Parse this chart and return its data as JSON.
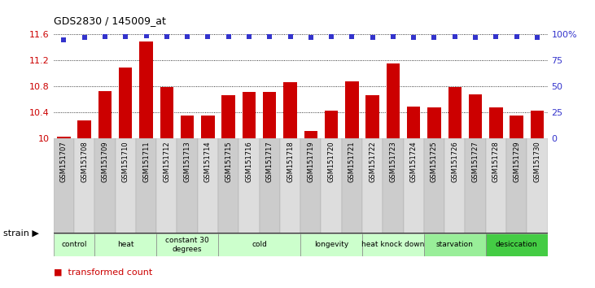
{
  "title": "GDS2830 / 145009_at",
  "categories": [
    "GSM151707",
    "GSM151708",
    "GSM151709",
    "GSM151710",
    "GSM151711",
    "GSM151712",
    "GSM151713",
    "GSM151714",
    "GSM151715",
    "GSM151716",
    "GSM151717",
    "GSM151718",
    "GSM151719",
    "GSM151720",
    "GSM151721",
    "GSM151722",
    "GSM151723",
    "GSM151724",
    "GSM151725",
    "GSM151726",
    "GSM151727",
    "GSM151728",
    "GSM151729",
    "GSM151730"
  ],
  "bar_values": [
    10.02,
    10.28,
    10.73,
    11.09,
    11.49,
    10.79,
    10.35,
    10.35,
    10.67,
    10.72,
    10.72,
    10.87,
    10.11,
    10.42,
    10.88,
    10.67,
    11.15,
    10.49,
    10.48,
    10.79,
    10.68,
    10.47,
    10.35,
    10.43
  ],
  "percentile_values": [
    95,
    97,
    98,
    98,
    99,
    98,
    98,
    98,
    98,
    98,
    98,
    98,
    97,
    98,
    98,
    97,
    98,
    97,
    97,
    98,
    97,
    98,
    98,
    97
  ],
  "bar_color": "#cc0000",
  "percentile_color": "#3333cc",
  "ylim_left": [
    10.0,
    11.6
  ],
  "ylim_right": [
    0,
    100
  ],
  "yticks_left": [
    10.0,
    10.4,
    10.8,
    11.2,
    11.6
  ],
  "ytick_labels_left": [
    "10",
    "10.4",
    "10.8",
    "11.2",
    "11.6"
  ],
  "yticks_right": [
    0,
    25,
    50,
    75,
    100
  ],
  "ytick_labels_right": [
    "0",
    "25",
    "50",
    "75",
    "100%"
  ],
  "groups": [
    {
      "label": "control",
      "start": 0,
      "end": 1,
      "color": "#ccffcc"
    },
    {
      "label": "heat",
      "start": 2,
      "end": 4,
      "color": "#ccffcc"
    },
    {
      "label": "constant 30\ndegrees",
      "start": 5,
      "end": 7,
      "color": "#ccffcc"
    },
    {
      "label": "cold",
      "start": 8,
      "end": 11,
      "color": "#ccffcc"
    },
    {
      "label": "longevity",
      "start": 12,
      "end": 14,
      "color": "#ccffcc"
    },
    {
      "label": "heat knock down",
      "start": 15,
      "end": 17,
      "color": "#ccffcc"
    },
    {
      "label": "starvation",
      "start": 18,
      "end": 20,
      "color": "#99ee99"
    },
    {
      "label": "desiccation",
      "start": 21,
      "end": 23,
      "color": "#44cc44"
    }
  ],
  "background_color": "#ffffff",
  "tick_label_color_left": "#cc0000",
  "tick_label_color_right": "#3333cc",
  "xtick_bg_color": "#dddddd",
  "group_border_color": "#888888",
  "dark_bar_color": "#555555"
}
